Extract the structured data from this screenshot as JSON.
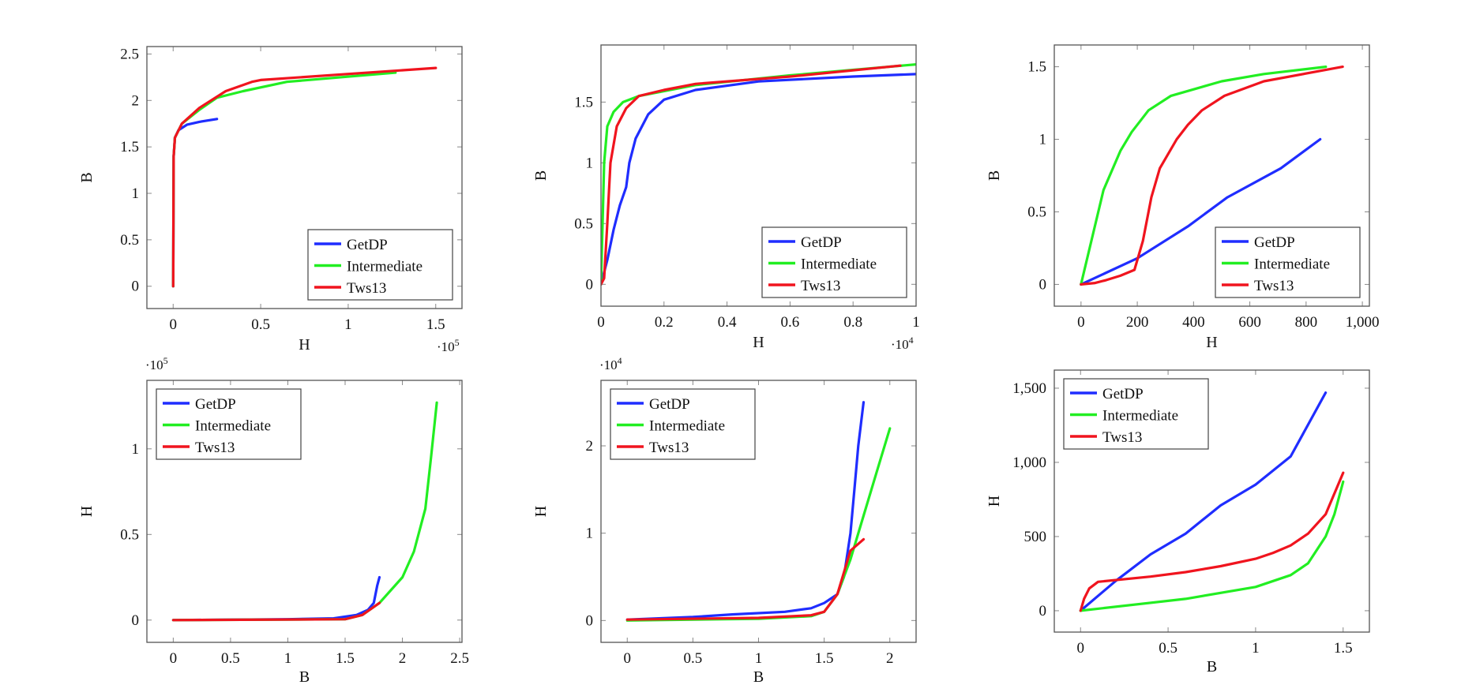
{
  "colors": {
    "GetDP": "#1f2dff",
    "Intermediate": "#22ee22",
    "Tws13": "#f0141e"
  },
  "chart_data": [
    {
      "type": "line",
      "xlabel": "H",
      "ylabel": "B",
      "x_multiplier": "·10",
      "x_multiplier_exp": "5",
      "xlim": [
        -0.15,
        1.65
      ],
      "ylim": [
        -0.24,
        2.58
      ],
      "xticks": [
        0,
        0.5,
        1,
        1.5
      ],
      "xticklabels": [
        "0",
        "0.5",
        "1",
        "1.5"
      ],
      "yticks": [
        0,
        0.5,
        1,
        1.5,
        2,
        2.5
      ],
      "yticklabels": [
        "0",
        "0.5",
        "1",
        "1.5",
        "2",
        "2.5"
      ],
      "legend": "bottom-right",
      "series": [
        {
          "name": "GetDP",
          "points": [
            [
              0,
              0
            ],
            [
              0.003,
              1.4
            ],
            [
              0.01,
              1.6
            ],
            [
              0.03,
              1.68
            ],
            [
              0.08,
              1.74
            ],
            [
              0.15,
              1.77
            ],
            [
              0.25,
              1.8
            ]
          ]
        },
        {
          "name": "Intermediate",
          "points": [
            [
              0,
              0
            ],
            [
              0.003,
              1.4
            ],
            [
              0.01,
              1.6
            ],
            [
              0.05,
              1.75
            ],
            [
              0.15,
              1.9
            ],
            [
              0.25,
              2.03
            ],
            [
              0.4,
              2.1
            ],
            [
              0.65,
              2.2
            ],
            [
              1.27,
              2.3
            ]
          ]
        },
        {
          "name": "Tws13",
          "points": [
            [
              0,
              0
            ],
            [
              0.003,
              1.4
            ],
            [
              0.01,
              1.6
            ],
            [
              0.05,
              1.75
            ],
            [
              0.15,
              1.92
            ],
            [
              0.3,
              2.1
            ],
            [
              0.45,
              2.2
            ],
            [
              0.5,
              2.22
            ],
            [
              1.5,
              2.35
            ]
          ]
        }
      ]
    },
    {
      "type": "line",
      "xlabel": "H",
      "ylabel": "B",
      "x_multiplier": "·10",
      "x_multiplier_exp": "4",
      "xlim": [
        0,
        1
      ],
      "ylim": [
        -0.18,
        1.97
      ],
      "xticks": [
        0,
        0.2,
        0.4,
        0.6,
        0.8,
        1
      ],
      "xticklabels": [
        "0",
        "0.2",
        "0.4",
        "0.6",
        "0.8",
        "1"
      ],
      "yticks": [
        0,
        0.5,
        1,
        1.5
      ],
      "yticklabels": [
        "0",
        "0.5",
        "1",
        "1.5"
      ],
      "legend": "bottom-right",
      "series": [
        {
          "name": "GetDP",
          "points": [
            [
              0,
              0
            ],
            [
              0.02,
              0.2
            ],
            [
              0.04,
              0.45
            ],
            [
              0.06,
              0.65
            ],
            [
              0.08,
              0.8
            ],
            [
              0.09,
              1.0
            ],
            [
              0.11,
              1.2
            ],
            [
              0.15,
              1.4
            ],
            [
              0.2,
              1.52
            ],
            [
              0.3,
              1.6
            ],
            [
              0.5,
              1.67
            ],
            [
              0.8,
              1.71
            ],
            [
              1.0,
              1.73
            ]
          ]
        },
        {
          "name": "Intermediate",
          "points": [
            [
              0,
              0
            ],
            [
              0.005,
              0.5
            ],
            [
              0.01,
              1.0
            ],
            [
              0.02,
              1.3
            ],
            [
              0.04,
              1.42
            ],
            [
              0.07,
              1.5
            ],
            [
              0.12,
              1.55
            ],
            [
              0.3,
              1.64
            ],
            [
              0.6,
              1.72
            ],
            [
              1.0,
              1.81
            ]
          ]
        },
        {
          "name": "Tws13",
          "points": [
            [
              0,
              0
            ],
            [
              0.01,
              0.05
            ],
            [
              0.02,
              0.5
            ],
            [
              0.03,
              1.0
            ],
            [
              0.05,
              1.3
            ],
            [
              0.08,
              1.45
            ],
            [
              0.12,
              1.55
            ],
            [
              0.2,
              1.6
            ],
            [
              0.3,
              1.65
            ],
            [
              0.6,
              1.71
            ],
            [
              0.95,
              1.8
            ]
          ]
        }
      ]
    },
    {
      "type": "line",
      "xlabel": "H",
      "ylabel": "B",
      "xlim": [
        -95,
        1025
      ],
      "ylim": [
        -0.15,
        1.65
      ],
      "xticks": [
        0,
        200,
        400,
        600,
        800,
        1000
      ],
      "xticklabels": [
        "0",
        "200",
        "400",
        "600",
        "800",
        "1,000"
      ],
      "yticks": [
        0,
        0.5,
        1,
        1.5
      ],
      "yticklabels": [
        "0",
        "0.5",
        "1",
        "1.5"
      ],
      "legend": "bottom-right",
      "series": [
        {
          "name": "GetDP",
          "points": [
            [
              0,
              0
            ],
            [
              200,
              0.18
            ],
            [
              380,
              0.4
            ],
            [
              520,
              0.6
            ],
            [
              710,
              0.8
            ],
            [
              850,
              1.0
            ]
          ]
        },
        {
          "name": "Intermediate",
          "points": [
            [
              0,
              0
            ],
            [
              80,
              0.65
            ],
            [
              140,
              0.92
            ],
            [
              180,
              1.05
            ],
            [
              240,
              1.2
            ],
            [
              320,
              1.3
            ],
            [
              500,
              1.4
            ],
            [
              650,
              1.45
            ],
            [
              870,
              1.5
            ]
          ]
        },
        {
          "name": "Tws13",
          "points": [
            [
              0,
              0
            ],
            [
              50,
              0.01
            ],
            [
              90,
              0.03
            ],
            [
              140,
              0.06
            ],
            [
              190,
              0.1
            ],
            [
              220,
              0.3
            ],
            [
              250,
              0.6
            ],
            [
              280,
              0.8
            ],
            [
              340,
              1.0
            ],
            [
              380,
              1.1
            ],
            [
              430,
              1.2
            ],
            [
              510,
              1.3
            ],
            [
              650,
              1.4
            ],
            [
              930,
              1.5
            ]
          ]
        }
      ]
    },
    {
      "type": "line",
      "xlabel": "B",
      "ylabel": "H",
      "y_multiplier": "·10",
      "y_multiplier_exp": "5",
      "xlim": [
        -0.23,
        2.52
      ],
      "ylim": [
        -0.13,
        1.4
      ],
      "xticks": [
        0,
        0.5,
        1,
        1.5,
        2,
        2.5
      ],
      "xticklabels": [
        "0",
        "0.5",
        "1",
        "1.5",
        "2",
        "2.5"
      ],
      "yticks": [
        0,
        0.5,
        1
      ],
      "yticklabels": [
        "0",
        "0.5",
        "1"
      ],
      "legend": "top-left",
      "series": [
        {
          "name": "GetDP",
          "points": [
            [
              0,
              0
            ],
            [
              1,
              0.005
            ],
            [
              1.4,
              0.01
            ],
            [
              1.6,
              0.03
            ],
            [
              1.7,
              0.06
            ],
            [
              1.75,
              0.1
            ],
            [
              1.78,
              0.2
            ],
            [
              1.8,
              0.25
            ]
          ]
        },
        {
          "name": "Intermediate",
          "points": [
            [
              0,
              0
            ],
            [
              1.5,
              0.005
            ],
            [
              1.65,
              0.03
            ],
            [
              1.8,
              0.1
            ],
            [
              2.0,
              0.25
            ],
            [
              2.1,
              0.4
            ],
            [
              2.2,
              0.65
            ],
            [
              2.25,
              0.95
            ],
            [
              2.3,
              1.27
            ]
          ]
        },
        {
          "name": "Tws13",
          "points": [
            [
              0,
              0
            ],
            [
              1.5,
              0.005
            ],
            [
              1.65,
              0.03
            ],
            [
              1.8,
              0.1
            ]
          ]
        }
      ]
    },
    {
      "type": "line",
      "xlabel": "B",
      "ylabel": "H",
      "y_multiplier": "·10",
      "y_multiplier_exp": "4",
      "xlim": [
        -0.2,
        2.2
      ],
      "ylim": [
        -0.25,
        2.75
      ],
      "xticks": [
        0,
        0.5,
        1,
        1.5,
        2
      ],
      "xticklabels": [
        "0",
        "0.5",
        "1",
        "1.5",
        "2"
      ],
      "yticks": [
        0,
        1,
        2
      ],
      "yticklabels": [
        "0",
        "1",
        "2"
      ],
      "legend": "top-left",
      "series": [
        {
          "name": "GetDP",
          "points": [
            [
              0,
              0.01
            ],
            [
              0.5,
              0.04
            ],
            [
              0.8,
              0.07
            ],
            [
              1.2,
              0.1
            ],
            [
              1.4,
              0.14
            ],
            [
              1.5,
              0.2
            ],
            [
              1.6,
              0.3
            ],
            [
              1.65,
              0.5
            ],
            [
              1.7,
              1.0
            ],
            [
              1.73,
              1.5
            ],
            [
              1.76,
              2.0
            ],
            [
              1.8,
              2.5
            ]
          ]
        },
        {
          "name": "Intermediate",
          "points": [
            [
              0,
              0
            ],
            [
              1.0,
              0.02
            ],
            [
              1.4,
              0.05
            ],
            [
              1.5,
              0.1
            ],
            [
              1.6,
              0.3
            ],
            [
              1.7,
              0.7
            ],
            [
              1.8,
              1.2
            ],
            [
              1.9,
              1.7
            ],
            [
              2.0,
              2.2
            ]
          ]
        },
        {
          "name": "Tws13",
          "points": [
            [
              0,
              0.01
            ],
            [
              1,
              0.03
            ],
            [
              1.4,
              0.06
            ],
            [
              1.5,
              0.1
            ],
            [
              1.6,
              0.3
            ],
            [
              1.7,
              0.8
            ],
            [
              1.8,
              0.93
            ]
          ]
        }
      ]
    },
    {
      "type": "line",
      "xlabel": "B",
      "ylabel": "H",
      "xlim": [
        -0.15,
        1.65
      ],
      "ylim": [
        -144,
        1622
      ],
      "xticks": [
        0,
        0.5,
        1,
        1.5
      ],
      "xticklabels": [
        "0",
        "0.5",
        "1",
        "1.5"
      ],
      "yticks": [
        0,
        500,
        1000,
        1500
      ],
      "yticklabels": [
        "0",
        "500",
        "1,000",
        "1,500"
      ],
      "legend": "top-left",
      "series": [
        {
          "name": "GetDP",
          "points": [
            [
              0,
              0
            ],
            [
              0.2,
              200
            ],
            [
              0.4,
              380
            ],
            [
              0.6,
              520
            ],
            [
              0.8,
              710
            ],
            [
              1.0,
              850
            ],
            [
              1.2,
              1040
            ],
            [
              1.4,
              1470
            ]
          ]
        },
        {
          "name": "Intermediate",
          "points": [
            [
              0,
              0
            ],
            [
              0.6,
              80
            ],
            [
              1.0,
              160
            ],
            [
              1.2,
              240
            ],
            [
              1.3,
              320
            ],
            [
              1.4,
              500
            ],
            [
              1.45,
              650
            ],
            [
              1.5,
              870
            ]
          ]
        },
        {
          "name": "Tws13",
          "points": [
            [
              0,
              0
            ],
            [
              0.02,
              80
            ],
            [
              0.05,
              150
            ],
            [
              0.1,
              195
            ],
            [
              0.4,
              230
            ],
            [
              0.6,
              260
            ],
            [
              0.8,
              300
            ],
            [
              1.0,
              350
            ],
            [
              1.1,
              390
            ],
            [
              1.2,
              440
            ],
            [
              1.3,
              520
            ],
            [
              1.4,
              650
            ],
            [
              1.5,
              930
            ]
          ]
        }
      ]
    }
  ]
}
